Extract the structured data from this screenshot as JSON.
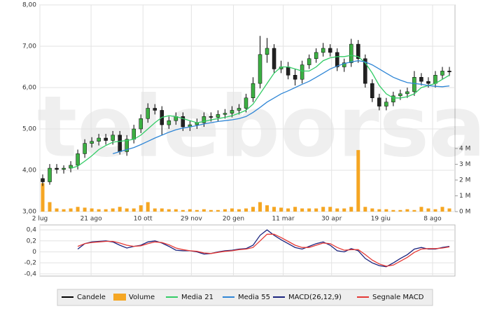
{
  "chart_data": [
    {
      "type": "candlestick",
      "x": [
        2,
        7,
        12,
        17,
        22,
        27,
        32,
        37,
        42,
        47,
        52,
        57,
        62,
        67,
        72,
        77,
        82,
        87,
        92,
        97,
        102,
        107,
        112,
        117,
        122,
        127,
        132,
        137,
        142,
        147,
        152,
        157,
        162,
        167,
        172,
        177,
        182,
        187,
        192,
        197,
        202,
        207,
        212,
        217,
        222,
        227,
        232,
        237,
        242,
        247,
        252,
        257,
        262,
        267,
        272,
        277,
        282,
        287,
        292
      ],
      "xlim": [
        0,
        296
      ],
      "xticks": [
        {
          "value": 0,
          "label": "2 lug"
        },
        {
          "value": 36.5,
          "label": "21 ago"
        },
        {
          "value": 73.5,
          "label": "10 ott"
        },
        {
          "value": 108,
          "label": "29 nov"
        },
        {
          "value": 138,
          "label": "20 gen"
        },
        {
          "value": 173.5,
          "label": "11 mar"
        },
        {
          "value": 208,
          "label": "30 apr"
        },
        {
          "value": 243,
          "label": "19 giu"
        },
        {
          "value": 280,
          "label": "8 ago"
        }
      ],
      "ylim": [
        3,
        8
      ],
      "yticks": [
        {
          "value": 3,
          "label": "3,00"
        },
        {
          "value": 4,
          "label": "4,00"
        },
        {
          "value": 5,
          "label": "5,00"
        },
        {
          "value": 6,
          "label": "6,00"
        },
        {
          "value": 7,
          "label": "7,00"
        },
        {
          "value": 8,
          "label": "8,00"
        }
      ],
      "y2lim": [
        0,
        13.1
      ],
      "y2ticks": [
        {
          "value": 0,
          "label": "0 M"
        },
        {
          "value": 1,
          "label": "1 M"
        },
        {
          "value": 2,
          "label": "2 M"
        },
        {
          "value": 3,
          "label": "3 M"
        },
        {
          "value": 4,
          "label": "4 M"
        }
      ],
      "grid": true,
      "watermark": "teleborsa",
      "series": [
        {
          "name": "Candele",
          "type": "candlestick",
          "color": "#000000",
          "up_color": "#3cb043",
          "down_color": "#222222",
          "open": [
            3.8,
            3.72,
            4.05,
            4.02,
            4.05,
            4.12,
            4.4,
            4.65,
            4.7,
            4.78,
            4.72,
            4.85,
            4.45,
            4.75,
            5.0,
            5.25,
            5.5,
            5.45,
            5.1,
            5.2,
            5.3,
            5.05,
            5.1,
            5.15,
            5.3,
            5.28,
            5.35,
            5.38,
            5.45,
            5.5,
            5.75,
            6.1,
            6.8,
            6.95,
            6.45,
            6.5,
            6.3,
            6.2,
            6.55,
            6.7,
            6.85,
            6.95,
            6.85,
            6.5,
            6.6,
            7.05,
            6.7,
            6.1,
            5.75,
            5.55,
            5.65,
            5.8,
            5.85,
            5.9,
            6.25,
            6.15,
            6.1,
            6.3,
            6.4
          ],
          "high": [
            3.9,
            4.15,
            4.15,
            4.12,
            4.22,
            4.5,
            4.75,
            4.8,
            4.88,
            4.88,
            4.95,
            4.95,
            4.85,
            5.1,
            5.35,
            5.62,
            5.6,
            5.55,
            5.3,
            5.4,
            5.4,
            5.2,
            5.25,
            5.4,
            5.4,
            5.45,
            5.48,
            5.55,
            5.6,
            5.85,
            6.25,
            7.25,
            7.2,
            7.05,
            6.65,
            6.62,
            6.45,
            6.65,
            6.8,
            6.95,
            7.08,
            7.05,
            6.95,
            6.7,
            7.18,
            7.15,
            6.8,
            6.2,
            5.85,
            5.75,
            5.9,
            5.95,
            6.0,
            6.4,
            6.35,
            6.25,
            6.4,
            6.5,
            6.5
          ],
          "low": [
            3.62,
            3.65,
            3.92,
            3.92,
            3.95,
            4.02,
            4.3,
            4.55,
            4.6,
            4.62,
            4.62,
            4.38,
            4.35,
            4.65,
            4.9,
            5.15,
            5.35,
            4.85,
            5.0,
            5.1,
            4.95,
            4.95,
            5.0,
            5.05,
            5.18,
            5.18,
            5.25,
            5.28,
            5.35,
            5.4,
            5.65,
            5.98,
            6.6,
            6.35,
            6.35,
            6.2,
            6.05,
            6.1,
            6.45,
            6.6,
            6.75,
            6.75,
            6.4,
            6.38,
            6.5,
            6.6,
            6.0,
            5.65,
            5.45,
            5.45,
            5.55,
            5.7,
            5.75,
            5.8,
            6.05,
            6.0,
            6.0,
            6.2,
            6.28
          ],
          "close": [
            3.72,
            4.05,
            4.02,
            4.05,
            4.12,
            4.4,
            4.65,
            4.7,
            4.78,
            4.72,
            4.85,
            4.45,
            4.75,
            5.0,
            5.25,
            5.5,
            5.45,
            5.1,
            5.2,
            5.3,
            5.05,
            5.1,
            5.15,
            5.3,
            5.28,
            5.35,
            5.38,
            5.45,
            5.5,
            5.75,
            6.1,
            6.8,
            6.95,
            6.45,
            6.5,
            6.3,
            6.2,
            6.55,
            6.7,
            6.85,
            6.95,
            6.85,
            6.5,
            6.6,
            7.05,
            6.7,
            6.1,
            5.75,
            5.55,
            5.65,
            5.8,
            5.85,
            5.9,
            6.25,
            6.15,
            6.1,
            6.3,
            6.4,
            6.38
          ]
        },
        {
          "name": "Volume",
          "type": "bar",
          "axis": "y2",
          "color": "#f5a623",
          "values": [
            1.8,
            0.6,
            0.2,
            0.15,
            0.2,
            0.3,
            0.25,
            0.2,
            0.15,
            0.15,
            0.2,
            0.3,
            0.2,
            0.2,
            0.4,
            0.6,
            0.2,
            0.2,
            0.15,
            0.15,
            0.1,
            0.15,
            0.1,
            0.15,
            0.1,
            0.1,
            0.15,
            0.2,
            0.15,
            0.2,
            0.3,
            0.6,
            0.4,
            0.3,
            0.25,
            0.2,
            0.3,
            0.2,
            0.2,
            0.2,
            0.3,
            0.3,
            0.2,
            0.2,
            0.3,
            3.9,
            0.3,
            0.2,
            0.15,
            0.15,
            0.1,
            0.1,
            0.15,
            0.1,
            0.3,
            0.2,
            0.15,
            0.3,
            0.2
          ]
        },
        {
          "name": "Media 21",
          "type": "line",
          "color": "#33cc66",
          "values": [
            null,
            null,
            null,
            null,
            4.05,
            4.1,
            4.22,
            4.35,
            4.5,
            4.6,
            4.68,
            4.7,
            4.72,
            4.75,
            4.85,
            5.0,
            5.15,
            5.28,
            5.32,
            5.3,
            5.25,
            5.2,
            5.15,
            5.18,
            5.22,
            5.25,
            5.28,
            5.32,
            5.38,
            5.45,
            5.6,
            5.85,
            6.1,
            6.35,
            6.5,
            6.5,
            6.45,
            6.4,
            6.4,
            6.5,
            6.65,
            6.72,
            6.75,
            6.75,
            6.78,
            6.75,
            6.6,
            6.35,
            6.05,
            5.85,
            5.75,
            5.75,
            5.78,
            5.85,
            6.0,
            6.05,
            6.1,
            6.2,
            6.3
          ]
        },
        {
          "name": "Media 55",
          "type": "line",
          "color": "#2f86d6",
          "values": [
            null,
            null,
            null,
            null,
            null,
            null,
            null,
            null,
            null,
            null,
            4.4,
            4.45,
            4.5,
            4.55,
            4.62,
            4.7,
            4.78,
            4.85,
            4.92,
            4.98,
            5.02,
            5.05,
            5.08,
            5.12,
            5.15,
            5.18,
            5.2,
            5.22,
            5.25,
            5.3,
            5.4,
            5.52,
            5.65,
            5.75,
            5.85,
            5.92,
            6.0,
            6.08,
            6.15,
            6.25,
            6.35,
            6.45,
            6.52,
            6.58,
            6.62,
            6.65,
            6.62,
            6.55,
            6.45,
            6.35,
            6.25,
            6.18,
            6.12,
            6.1,
            6.08,
            6.05,
            6.03,
            6.02,
            6.04
          ]
        }
      ]
    },
    {
      "type": "line",
      "x": [
        2,
        7,
        12,
        17,
        22,
        27,
        32,
        37,
        42,
        47,
        52,
        57,
        62,
        67,
        72,
        77,
        82,
        87,
        92,
        97,
        102,
        107,
        112,
        117,
        122,
        127,
        132,
        137,
        142,
        147,
        152,
        157,
        162,
        167,
        172,
        177,
        182,
        187,
        192,
        197,
        202,
        207,
        212,
        217,
        222,
        227,
        232,
        237,
        242,
        247,
        252,
        257,
        262,
        267,
        272,
        277,
        282,
        287,
        292
      ],
      "xlim": [
        0,
        296
      ],
      "ylim": [
        -0.44,
        0.49
      ],
      "yticks": [
        {
          "value": 0.4,
          "label": "0,4"
        },
        {
          "value": 0.2,
          "label": "0,2"
        },
        0,
        {
          "value": -0.2,
          "label": "-0,2"
        },
        {
          "value": -0.4,
          "label": "-0,4"
        }
      ],
      "grid": true,
      "series": [
        {
          "name": "MACD(26,12,9)",
          "color": "#1a237e",
          "values": [
            null,
            null,
            null,
            null,
            null,
            0.05,
            0.15,
            0.18,
            0.19,
            0.2,
            0.18,
            0.12,
            0.07,
            0.1,
            0.12,
            0.18,
            0.2,
            0.16,
            0.1,
            0.03,
            0.02,
            0.02,
            0.0,
            -0.04,
            -0.03,
            0.0,
            0.02,
            0.03,
            0.05,
            0.06,
            0.12,
            0.3,
            0.4,
            0.3,
            0.22,
            0.15,
            0.08,
            0.05,
            0.1,
            0.15,
            0.18,
            0.12,
            0.02,
            0.0,
            0.06,
            0.02,
            -0.12,
            -0.2,
            -0.25,
            -0.27,
            -0.2,
            -0.12,
            -0.05,
            0.05,
            0.08,
            0.05,
            0.05,
            0.08,
            0.1
          ]
        },
        {
          "name": "Segnale MACD",
          "color": "#e53935",
          "values": [
            null,
            null,
            null,
            null,
            null,
            0.1,
            0.15,
            0.17,
            0.18,
            0.19,
            0.19,
            0.16,
            0.12,
            0.1,
            0.11,
            0.15,
            0.18,
            0.17,
            0.13,
            0.07,
            0.04,
            0.02,
            0.01,
            -0.02,
            -0.03,
            -0.01,
            0.01,
            0.02,
            0.04,
            0.05,
            0.08,
            0.2,
            0.32,
            0.32,
            0.26,
            0.19,
            0.12,
            0.08,
            0.08,
            0.12,
            0.16,
            0.15,
            0.08,
            0.03,
            0.04,
            0.04,
            -0.05,
            -0.15,
            -0.22,
            -0.26,
            -0.24,
            -0.17,
            -0.1,
            -0.01,
            0.05,
            0.06,
            0.06,
            0.07,
            0.09
          ]
        }
      ]
    }
  ]
}
